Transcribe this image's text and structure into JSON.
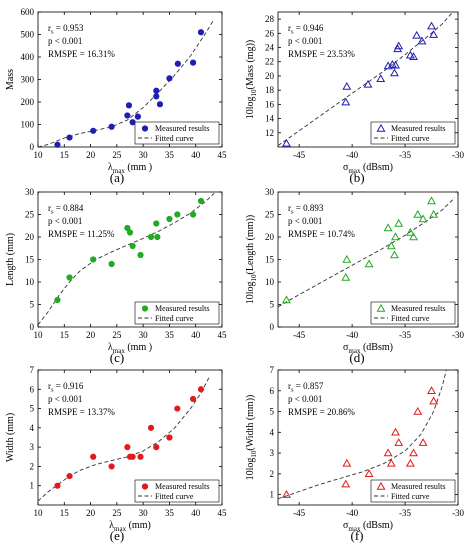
{
  "colors": {
    "blue": "#1f1fb4",
    "green": "#22aa22",
    "red": "#e31a1c",
    "fit": "#333333",
    "frame": "#000000"
  },
  "chart_data": [
    {
      "panel": "(a)",
      "type": "scatter",
      "xlabel_main": "λ",
      "xlabel_sub": "max",
      "xlabel_unit": " (mm )",
      "ylabel": "Mass",
      "xlim": [
        10,
        45
      ],
      "ylim": [
        0,
        600
      ],
      "xticks": [
        10,
        15,
        20,
        25,
        30,
        35,
        40,
        45
      ],
      "yticks": [
        0,
        100,
        200,
        300,
        400,
        500,
        600
      ],
      "marker": "circle",
      "color": "blue",
      "stats": {
        "rs": "r",
        "rs_sub": "s",
        "rs_val": " = 0.953",
        "p": "p < 0.001",
        "rmspe": "RMSPE = 16.31%"
      },
      "legend": {
        "measured": "Measured results",
        "fitted": "Fitted curve"
      },
      "points": [
        [
          13.7,
          10
        ],
        [
          16,
          42
        ],
        [
          20.5,
          72
        ],
        [
          24,
          90
        ],
        [
          27,
          140
        ],
        [
          27.3,
          185
        ],
        [
          28,
          110
        ],
        [
          29,
          135
        ],
        [
          32.5,
          250
        ],
        [
          32.5,
          225
        ],
        [
          33.2,
          190
        ],
        [
          35,
          305
        ],
        [
          36.6,
          370
        ],
        [
          39.5,
          375
        ],
        [
          41,
          510
        ]
      ],
      "fit": [
        [
          10,
          0
        ],
        [
          12,
          12
        ],
        [
          15,
          40
        ],
        [
          18,
          60
        ],
        [
          21,
          74
        ],
        [
          24,
          90
        ],
        [
          27,
          120
        ],
        [
          30,
          175
        ],
        [
          33,
          245
        ],
        [
          36,
          320
        ],
        [
          39,
          405
        ],
        [
          42,
          510
        ],
        [
          43.5,
          568
        ]
      ]
    },
    {
      "panel": "(b)",
      "type": "scatter",
      "xlabel_main": "σ",
      "xlabel_sub": "max",
      "xlabel_unit": " (dBsm)",
      "ylabel_pre": "10log",
      "ylabel_sub": "10",
      "ylabel_post": "(Mass (mg))",
      "xlim": [
        -47,
        -30
      ],
      "ylim": [
        10,
        29
      ],
      "xticks": [
        -45,
        -40,
        -35,
        -30
      ],
      "yticks": [
        12,
        14,
        16,
        18,
        20,
        22,
        24,
        26,
        28
      ],
      "marker": "triangle",
      "color": "blue",
      "stats": {
        "rs": "r",
        "rs_sub": "s",
        "rs_val": " = 0.946",
        "p": "p < 0.001",
        "rmspe": "RMSPE = 23.53%"
      },
      "legend": {
        "measured": "Measured results",
        "fitted": "Fitted curve"
      },
      "points": [
        [
          -46.2,
          10.5
        ],
        [
          -40.6,
          16.3
        ],
        [
          -40.5,
          18.5
        ],
        [
          -38.5,
          18.8
        ],
        [
          -37.3,
          19.6
        ],
        [
          -36.6,
          21.4
        ],
        [
          -36.2,
          21.6
        ],
        [
          -36.0,
          20.4
        ],
        [
          -35.9,
          21.5
        ],
        [
          -35.7,
          23.8
        ],
        [
          -35.6,
          24.2
        ],
        [
          -34.5,
          22.9
        ],
        [
          -34.2,
          22.7
        ],
        [
          -33.9,
          25.7
        ],
        [
          -33.4,
          24.9
        ],
        [
          -32.5,
          27.0
        ],
        [
          -32.3,
          25.8
        ]
      ],
      "fit": [
        [
          -47,
          10.2
        ],
        [
          -45,
          12.3
        ],
        [
          -43,
          14.4
        ],
        [
          -41,
          16.5
        ],
        [
          -39,
          18.6
        ],
        [
          -37,
          20.7
        ],
        [
          -35,
          23.0
        ],
        [
          -33,
          25.4
        ],
        [
          -31.5,
          27.3
        ],
        [
          -30.6,
          28.8
        ]
      ]
    },
    {
      "panel": "(c)",
      "type": "scatter",
      "xlabel_main": "λ",
      "xlabel_sub": "max",
      "xlabel_unit": " (mm )",
      "ylabel": "Length (mm)",
      "xlim": [
        10,
        45
      ],
      "ylim": [
        0,
        30
      ],
      "xticks": [
        10,
        15,
        20,
        25,
        30,
        35,
        40,
        45
      ],
      "yticks": [
        0,
        5,
        10,
        15,
        20,
        25,
        30
      ],
      "marker": "circle",
      "color": "green",
      "stats": {
        "rs": "r",
        "rs_sub": "s",
        "rs_val": " = 0.884",
        "p": "p < 0.001",
        "rmspe": "RMSPE = 11.25%"
      },
      "legend": {
        "measured": "Measured results",
        "fitted": "Fitted curve"
      },
      "points": [
        [
          13.7,
          6
        ],
        [
          16,
          11
        ],
        [
          20.5,
          15
        ],
        [
          24,
          14
        ],
        [
          27,
          22
        ],
        [
          27.5,
          21
        ],
        [
          28,
          18
        ],
        [
          29.5,
          16
        ],
        [
          31.5,
          20
        ],
        [
          32.5,
          23
        ],
        [
          32.7,
          20
        ],
        [
          35,
          24
        ],
        [
          36.5,
          25
        ],
        [
          39.5,
          25
        ],
        [
          41,
          28
        ]
      ],
      "fit": [
        [
          10,
          0.5
        ],
        [
          12,
          3.5
        ],
        [
          14,
          7
        ],
        [
          16,
          10
        ],
        [
          18,
          12.5
        ],
        [
          21,
          15
        ],
        [
          24,
          16.7
        ],
        [
          27,
          18.2
        ],
        [
          30,
          19.7
        ],
        [
          33,
          21.3
        ],
        [
          36,
          23.2
        ],
        [
          39,
          25.3
        ],
        [
          42,
          28
        ],
        [
          43.5,
          29.7
        ]
      ]
    },
    {
      "panel": "(d)",
      "type": "scatter",
      "xlabel_main": "σ",
      "xlabel_sub": "max",
      "xlabel_unit": " (dBsm)",
      "ylabel_pre": "10log",
      "ylabel_sub": "10",
      "ylabel_post": "(Length (mm))",
      "xlim": [
        -47,
        -30
      ],
      "ylim": [
        0,
        30
      ],
      "xticks": [
        -45,
        -40,
        -35,
        -30
      ],
      "yticks": [
        0,
        5,
        10,
        15,
        20,
        25,
        30
      ],
      "marker": "triangle",
      "color": "green",
      "stats": {
        "rs": "r",
        "rs_sub": "s",
        "rs_val": " = 0.893",
        "p": "p < 0.001",
        "rmspe": "RMSPE = 10.74%"
      },
      "legend": {
        "measured": "Measured results",
        "fitted": "Fitted curve"
      },
      "points": [
        [
          -46.2,
          6
        ],
        [
          -40.6,
          11
        ],
        [
          -40.5,
          15
        ],
        [
          -38.4,
          14
        ],
        [
          -36.6,
          22
        ],
        [
          -36.3,
          18
        ],
        [
          -36.0,
          16
        ],
        [
          -35.9,
          20
        ],
        [
          -35.6,
          23
        ],
        [
          -34.5,
          21
        ],
        [
          -34.2,
          20
        ],
        [
          -33.8,
          25
        ],
        [
          -33.3,
          24
        ],
        [
          -32.5,
          28
        ],
        [
          -32.3,
          25
        ]
      ],
      "fit": [
        [
          -47,
          4.5
        ],
        [
          -45,
          7.2
        ],
        [
          -43,
          9.8
        ],
        [
          -41,
          12.4
        ],
        [
          -39,
          15
        ],
        [
          -37,
          17.6
        ],
        [
          -35,
          20.4
        ],
        [
          -33,
          23.5
        ],
        [
          -31.5,
          26
        ],
        [
          -30.3,
          28.7
        ]
      ]
    },
    {
      "panel": "(e)",
      "type": "scatter",
      "xlabel_main": "λ",
      "xlabel_sub": "max",
      "xlabel_unit": " (mm)",
      "ylabel": "Width (mm)",
      "xlim": [
        10,
        45
      ],
      "ylim": [
        0,
        7
      ],
      "xticks": [
        10,
        15,
        20,
        25,
        30,
        35,
        40,
        45
      ],
      "yticks": [
        1,
        2,
        3,
        4,
        5,
        6,
        7
      ],
      "marker": "circle",
      "color": "red",
      "stats": {
        "rs": "r",
        "rs_sub": "s",
        "rs_val": " = 0.916",
        "p": "p < 0.001",
        "rmspe": "RMSPE = 13.37%"
      },
      "legend": {
        "measured": "Measured results",
        "fitted": "Fitted curve"
      },
      "points": [
        [
          13.7,
          1
        ],
        [
          16,
          1.5
        ],
        [
          20.5,
          2.5
        ],
        [
          24,
          2
        ],
        [
          27,
          3
        ],
        [
          27.5,
          2.5
        ],
        [
          28,
          2.5
        ],
        [
          29.5,
          2.5
        ],
        [
          31.5,
          4
        ],
        [
          32.5,
          3
        ],
        [
          35,
          3.5
        ],
        [
          36.5,
          5
        ],
        [
          39.5,
          5.5
        ],
        [
          41,
          6
        ]
      ],
      "fit": [
        [
          10,
          0.2
        ],
        [
          12,
          0.7
        ],
        [
          14,
          1.1
        ],
        [
          16,
          1.5
        ],
        [
          18,
          1.8
        ],
        [
          21,
          2.1
        ],
        [
          24,
          2.3
        ],
        [
          27,
          2.5
        ],
        [
          30,
          2.8
        ],
        [
          33,
          3.3
        ],
        [
          36,
          4
        ],
        [
          39,
          5
        ],
        [
          41,
          5.8
        ],
        [
          42.5,
          6.6
        ]
      ]
    },
    {
      "panel": "(f)",
      "type": "scatter",
      "xlabel_main": "σ",
      "xlabel_sub": "max",
      "xlabel_unit": " (dBsm)",
      "ylabel_pre": "10log",
      "ylabel_sub": "10",
      "ylabel_post": "(Width (mm))",
      "xlim": [
        -47,
        -30
      ],
      "ylim": [
        0.5,
        7
      ],
      "xticks": [
        -45,
        -40,
        -35,
        -30
      ],
      "yticks": [
        1,
        2,
        3,
        4,
        5,
        6,
        7
      ],
      "marker": "triangle",
      "color": "red",
      "stats": {
        "rs": "r",
        "rs_sub": "s",
        "rs_val": " = 0.857",
        "p": "p < 0.001",
        "rmspe": "RMSPE = 20.86%"
      },
      "legend": {
        "measured": "Measured results",
        "fitted": "Fitted curve"
      },
      "points": [
        [
          -46.2,
          1
        ],
        [
          -40.6,
          1.5
        ],
        [
          -40.5,
          2.5
        ],
        [
          -38.4,
          2
        ],
        [
          -36.6,
          3
        ],
        [
          -36.3,
          2.5
        ],
        [
          -35.9,
          4
        ],
        [
          -35.6,
          3.5
        ],
        [
          -34.5,
          2.5
        ],
        [
          -34.2,
          3
        ],
        [
          -33.8,
          5
        ],
        [
          -33.3,
          3.5
        ],
        [
          -32.5,
          6
        ],
        [
          -32.3,
          5.5
        ]
      ],
      "fit": [
        [
          -47,
          0.8
        ],
        [
          -45,
          1.15
        ],
        [
          -43,
          1.5
        ],
        [
          -41,
          1.8
        ],
        [
          -39,
          2.1
        ],
        [
          -37,
          2.5
        ],
        [
          -35,
          3.1
        ],
        [
          -33.5,
          3.9
        ],
        [
          -32.3,
          5.0
        ],
        [
          -31.5,
          6.2
        ],
        [
          -31.1,
          7
        ]
      ]
    }
  ]
}
